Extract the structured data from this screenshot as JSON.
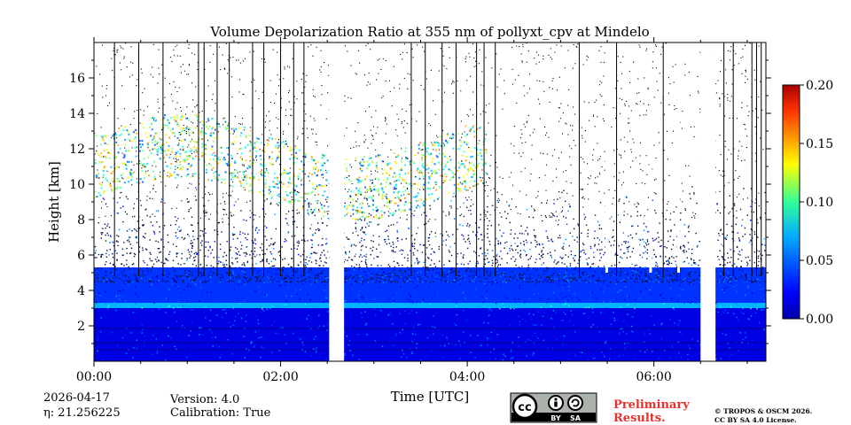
{
  "chart_data": {
    "type": "heatmap",
    "title": "Volume Depolarization Ratio at 355 nm of pollyxt_cpv at Mindelo",
    "xlabel": "Time [UTC]",
    "ylabel": "Height [km]",
    "x_range_hours": [
      0,
      7.2
    ],
    "ylim_km": [
      0,
      18
    ],
    "x_ticks": [
      {
        "value": 0,
        "label": "00:00"
      },
      {
        "value": 2,
        "label": "02:00"
      },
      {
        "value": 4,
        "label": "04:00"
      },
      {
        "value": 6,
        "label": "06:00"
      }
    ],
    "x_minor_ticks": [
      0.5,
      1,
      1.5,
      2.5,
      3,
      3.5,
      4.5,
      5,
      5.5,
      6.5,
      7
    ],
    "y_ticks": [
      {
        "value": 2,
        "label": "2"
      },
      {
        "value": 4,
        "label": "4"
      },
      {
        "value": 6,
        "label": "6"
      },
      {
        "value": 8,
        "label": "8"
      },
      {
        "value": 10,
        "label": "10"
      },
      {
        "value": 12,
        "label": "12"
      },
      {
        "value": 14,
        "label": "14"
      },
      {
        "value": 16,
        "label": "16"
      }
    ],
    "y_minor_ticks": [
      1,
      3,
      5,
      7,
      9,
      11,
      13,
      15,
      17
    ],
    "colorbar": {
      "range": [
        0.0,
        0.2
      ],
      "ticks": [
        {
          "value": 0.0,
          "label": "0.00"
        },
        {
          "value": 0.05,
          "label": "0.05"
        },
        {
          "value": 0.1,
          "label": "0.10"
        },
        {
          "value": 0.15,
          "label": "0.15"
        },
        {
          "value": 0.2,
          "label": "0.20"
        }
      ],
      "colormap": "jet"
    },
    "data_gaps_hours": [
      [
        2.52,
        2.68
      ],
      [
        6.5,
        6.66
      ]
    ],
    "layers": [
      {
        "name": "boundary-layer",
        "height_km": [
          0,
          3
        ],
        "depol": 0.02
      },
      {
        "name": "aerosol-layer-edge",
        "height_km": [
          3,
          3.3
        ],
        "depol": 0.06
      },
      {
        "name": "dust-layer",
        "height_km": [
          3.3,
          5.3
        ],
        "depol": 0.035
      },
      {
        "name": "cirrus",
        "time_h": [
          0,
          4.2
        ],
        "height_km": [
          9,
          14
        ],
        "depol": 0.11
      }
    ]
  },
  "footer": {
    "date": "2026-04-17",
    "eta": "η: 21.256225",
    "version": "Version: 4.0",
    "calibration": "Calibration: True",
    "preliminary_line1": "Preliminary",
    "preliminary_line2": "Results.",
    "copyright_line1": "© TROPOS & OSCM 2026.",
    "copyright_line2": "CC BY SA 4.0 License.",
    "license_badge": {
      "cc": "cc",
      "by": "BY",
      "sa": "SA"
    }
  },
  "colors": {
    "preliminary": "#e8312f",
    "badge_bg": "#aab2ab",
    "badge_dark": "#000000"
  }
}
